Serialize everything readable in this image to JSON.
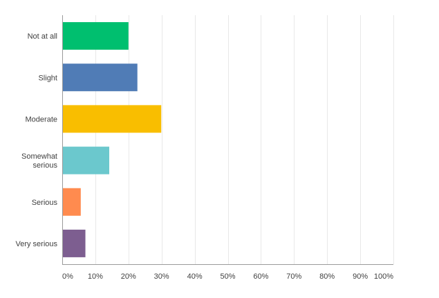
{
  "chart_data": {
    "type": "bar",
    "orientation": "horizontal",
    "categories": [
      [
        "Not at all"
      ],
      [
        "Slight"
      ],
      [
        "Moderate"
      ],
      [
        "Somewhat",
        "serious"
      ],
      [
        "Serious"
      ],
      [
        "Very serious"
      ]
    ],
    "values": [
      20,
      22.7,
      29.9,
      14.2,
      5.6,
      7
    ],
    "colors": [
      "#00bf6f",
      "#507cb6",
      "#f9be00",
      "#6bc8cd",
      "#ff8b4f",
      "#7d5e90"
    ],
    "x_ticks": [
      "0%",
      "10%",
      "20%",
      "30%",
      "40%",
      "50%",
      "60%",
      "70%",
      "80%",
      "90%",
      "100%"
    ],
    "xlim": [
      0,
      100
    ],
    "grid": true,
    "gridline_color": "#e8e8e8",
    "axis_color": "#9a9a9a",
    "label_color": "#404040"
  }
}
